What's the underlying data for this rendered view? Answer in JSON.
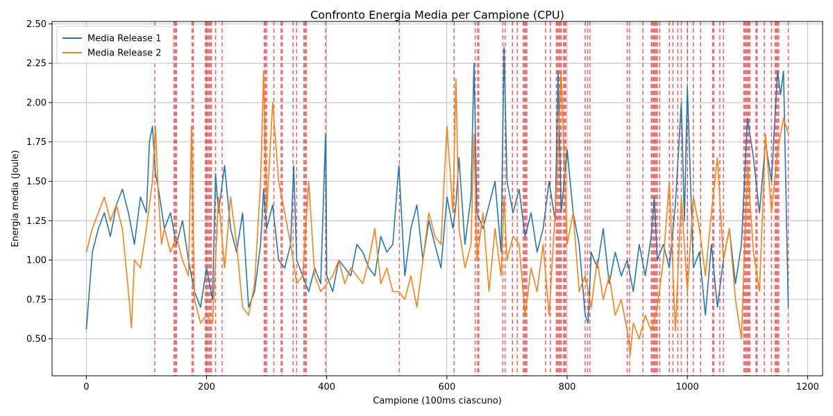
{
  "chart_data": {
    "type": "line",
    "title": "Confronto Energia Media per Campione (CPU)",
    "xlabel": "Campione (100ms ciascuno)",
    "ylabel": "Energia media (Joule)",
    "xlim": [
      -57,
      1225
    ],
    "ylim": [
      0.265,
      2.515
    ],
    "xticks": [
      0,
      200,
      400,
      600,
      800,
      1000,
      1200
    ],
    "yticks": [
      0.5,
      0.75,
      1.0,
      1.25,
      1.5,
      1.75,
      2.0,
      2.25,
      2.5
    ],
    "xtick_labels": [
      "0",
      "200",
      "400",
      "600",
      "800",
      "1000",
      "1200"
    ],
    "ytick_labels": [
      "0.50",
      "0.75",
      "1.00",
      "1.25",
      "1.50",
      "1.75",
      "2.00",
      "2.25",
      "2.50"
    ],
    "grid": true,
    "legend_position": "top-left",
    "series": [
      {
        "name": "Media Release 1",
        "color": "#1f77b4",
        "x": [
          0,
          10,
          20,
          30,
          40,
          50,
          60,
          70,
          80,
          90,
          100,
          105,
          110,
          115,
          120,
          130,
          140,
          150,
          160,
          170,
          180,
          190,
          200,
          210,
          215,
          220,
          230,
          240,
          250,
          260,
          270,
          280,
          290,
          295,
          300,
          310,
          320,
          330,
          340,
          345,
          350,
          360,
          370,
          380,
          390,
          398,
          400,
          410,
          420,
          430,
          440,
          450,
          460,
          470,
          480,
          490,
          500,
          510,
          520,
          530,
          540,
          550,
          560,
          570,
          580,
          590,
          600,
          610,
          615,
          620,
          630,
          640,
          645,
          650,
          660,
          670,
          680,
          690,
          695,
          700,
          710,
          720,
          730,
          740,
          750,
          760,
          770,
          780,
          785,
          790,
          800,
          810,
          820,
          830,
          835,
          840,
          850,
          860,
          870,
          880,
          890,
          900,
          910,
          920,
          930,
          940,
          945,
          950,
          960,
          970,
          980,
          990,
          995,
          1000,
          1010,
          1020,
          1030,
          1040,
          1050,
          1060,
          1070,
          1080,
          1090,
          1100,
          1110,
          1120,
          1130,
          1140,
          1150,
          1155,
          1160,
          1168
        ],
        "y": [
          0.56,
          1.05,
          1.2,
          1.3,
          1.15,
          1.35,
          1.45,
          1.3,
          1.1,
          1.4,
          1.3,
          1.75,
          1.85,
          1.55,
          1.45,
          1.2,
          1.3,
          1.1,
          1.25,
          1.0,
          0.8,
          0.7,
          0.95,
          0.75,
          1.55,
          1.3,
          1.6,
          1.2,
          1.05,
          1.3,
          0.7,
          0.8,
          1.1,
          1.45,
          1.2,
          1.35,
          1.0,
          0.95,
          1.1,
          1.6,
          1.0,
          0.9,
          0.8,
          0.95,
          0.85,
          1.8,
          0.9,
          0.8,
          1.0,
          0.95,
          0.9,
          1.1,
          1.05,
          0.95,
          0.9,
          1.15,
          1.05,
          1.1,
          1.6,
          0.9,
          1.2,
          1.35,
          1.0,
          1.25,
          1.1,
          0.95,
          1.4,
          1.2,
          1.35,
          1.65,
          1.1,
          1.4,
          2.25,
          1.3,
          1.2,
          1.35,
          1.5,
          1.05,
          2.35,
          1.5,
          1.3,
          1.45,
          1.15,
          1.3,
          1.05,
          1.2,
          1.5,
          1.25,
          2.2,
          1.3,
          1.7,
          1.3,
          1.1,
          0.65,
          0.6,
          1.05,
          0.95,
          1.2,
          0.85,
          1.05,
          0.9,
          1.0,
          0.8,
          1.1,
          0.9,
          1.15,
          1.4,
          1.0,
          1.1,
          0.95,
          1.35,
          2.0,
          1.25,
          2.1,
          0.95,
          1.05,
          0.65,
          1.1,
          0.7,
          1.0,
          1.2,
          0.85,
          1.1,
          1.9,
          1.65,
          1.3,
          1.75,
          1.5,
          2.2,
          2.05,
          2.2,
          0.7
        ]
      },
      {
        "name": "Media Release 2",
        "color": "#ff7f0e",
        "x": [
          0,
          10,
          20,
          30,
          40,
          50,
          60,
          70,
          75,
          80,
          90,
          100,
          110,
          115,
          120,
          125,
          130,
          140,
          150,
          160,
          170,
          175,
          180,
          190,
          200,
          210,
          220,
          230,
          240,
          250,
          260,
          270,
          280,
          290,
          295,
          300,
          310,
          320,
          330,
          340,
          350,
          360,
          370,
          380,
          390,
          400,
          410,
          420,
          430,
          440,
          450,
          460,
          470,
          480,
          490,
          500,
          510,
          520,
          530,
          540,
          550,
          560,
          570,
          580,
          590,
          600,
          610,
          615,
          620,
          630,
          640,
          645,
          650,
          660,
          670,
          680,
          690,
          695,
          700,
          710,
          720,
          730,
          740,
          750,
          760,
          770,
          780,
          785,
          790,
          800,
          810,
          820,
          830,
          840,
          850,
          860,
          870,
          880,
          890,
          900,
          905,
          910,
          920,
          930,
          940,
          950,
          960,
          970,
          980,
          990,
          1000,
          1010,
          1020,
          1030,
          1040,
          1050,
          1060,
          1070,
          1080,
          1090,
          1100,
          1110,
          1120,
          1130,
          1140,
          1150,
          1160,
          1168
        ],
        "y": [
          1.05,
          1.2,
          1.3,
          1.4,
          1.25,
          1.35,
          1.2,
          0.8,
          0.57,
          1.0,
          0.95,
          1.2,
          1.5,
          1.85,
          1.4,
          1.1,
          1.2,
          1.05,
          1.15,
          1.0,
          0.9,
          1.85,
          0.75,
          0.6,
          0.65,
          0.6,
          1.4,
          0.95,
          1.4,
          1.1,
          0.7,
          0.65,
          0.85,
          1.5,
          2.2,
          1.3,
          2.0,
          1.5,
          1.3,
          1.1,
          0.85,
          0.9,
          1.5,
          0.9,
          0.8,
          0.85,
          0.9,
          1.0,
          0.85,
          0.95,
          0.9,
          0.85,
          1.0,
          1.2,
          0.85,
          0.95,
          0.8,
          0.8,
          0.75,
          0.9,
          0.7,
          1.0,
          1.3,
          1.15,
          1.1,
          1.85,
          1.3,
          2.15,
          1.2,
          0.95,
          1.1,
          1.8,
          1.0,
          1.3,
          0.8,
          1.2,
          0.9,
          1.4,
          1.0,
          1.15,
          1.1,
          0.65,
          0.95,
          0.8,
          1.1,
          0.65,
          1.3,
          1.7,
          2.2,
          1.1,
          1.3,
          0.8,
          0.9,
          0.7,
          1.0,
          0.75,
          0.9,
          0.65,
          0.75,
          0.55,
          0.4,
          0.6,
          0.5,
          0.65,
          0.55,
          0.7,
          1.0,
          1.5,
          0.55,
          1.4,
          0.8,
          1.4,
          1.2,
          0.9,
          1.3,
          1.65,
          1.0,
          1.2,
          0.75,
          0.5,
          1.6,
          1.05,
          0.8,
          1.8,
          1.3,
          1.7,
          1.9,
          1.8
        ]
      }
    ],
    "vlines": {
      "color": "#ff0000",
      "style": "dashed",
      "x": [
        114,
        146,
        148,
        150,
        176,
        178,
        198,
        200,
        202,
        204,
        206,
        208,
        215,
        226,
        296,
        298,
        300,
        312,
        324,
        326,
        344,
        350,
        362,
        364,
        366,
        398,
        521,
        612,
        647,
        651,
        653,
        693,
        697,
        709,
        717,
        727,
        729,
        731,
        733,
        764,
        772,
        782,
        784,
        786,
        788,
        790,
        794,
        796,
        798,
        830,
        834,
        838,
        900,
        904,
        926,
        940,
        942,
        944,
        946,
        948,
        950,
        954,
        970,
        976,
        984,
        990,
        1000,
        1010,
        1022,
        1042,
        1044,
        1054,
        1060,
        1094,
        1096,
        1098,
        1100,
        1102,
        1104,
        1114,
        1116,
        1128,
        1140,
        1146,
        1148,
        1150,
        1152,
        1168
      ]
    }
  }
}
